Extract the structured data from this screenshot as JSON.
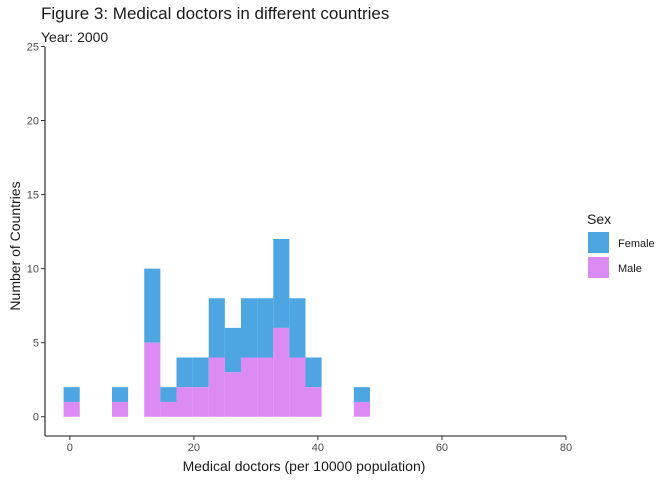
{
  "chart_data": {
    "type": "bar",
    "title": "Figure 3: Medical doctors in different countries",
    "subtitle": "Year: 2000",
    "xlabel": "Medical doctors (per 10000 population)",
    "ylabel": "Number of Countries",
    "xlim": [
      -4,
      80
    ],
    "ylim": [
      -1.3,
      25.3
    ],
    "x_ticks": [
      0,
      20,
      40,
      60,
      80
    ],
    "y_ticks": [
      0,
      5,
      10,
      15,
      20,
      25
    ],
    "bin_width": 2.6,
    "bins": [
      {
        "x0": -1,
        "x1": 1.6,
        "male": 1,
        "female": 1
      },
      {
        "x0": 6.8,
        "x1": 9.4,
        "male": 1,
        "female": 1
      },
      {
        "x0": 12,
        "x1": 14.6,
        "male": 5,
        "female": 5
      },
      {
        "x0": 14.6,
        "x1": 17.2,
        "male": 1,
        "female": 1
      },
      {
        "x0": 17.2,
        "x1": 19.8,
        "male": 2,
        "female": 2
      },
      {
        "x0": 19.8,
        "x1": 22.4,
        "male": 2,
        "female": 2
      },
      {
        "x0": 22.4,
        "x1": 25,
        "male": 4,
        "female": 4
      },
      {
        "x0": 25,
        "x1": 27.6,
        "male": 3,
        "female": 3
      },
      {
        "x0": 27.6,
        "x1": 30.2,
        "male": 4,
        "female": 4
      },
      {
        "x0": 30.2,
        "x1": 32.8,
        "male": 4,
        "female": 4
      },
      {
        "x0": 32.8,
        "x1": 35.4,
        "male": 6,
        "female": 6
      },
      {
        "x0": 35.4,
        "x1": 38,
        "male": 4,
        "female": 4
      },
      {
        "x0": 38,
        "x1": 40.6,
        "male": 2,
        "female": 2
      },
      {
        "x0": 45.8,
        "x1": 48.4,
        "male": 1,
        "female": 1
      }
    ],
    "series": [
      {
        "name": "Female",
        "color": "#4DA6E2"
      },
      {
        "name": "Male",
        "color": "#DB8BF2"
      }
    ],
    "legend": {
      "title": "Sex",
      "placement": "right"
    },
    "grid": false
  }
}
